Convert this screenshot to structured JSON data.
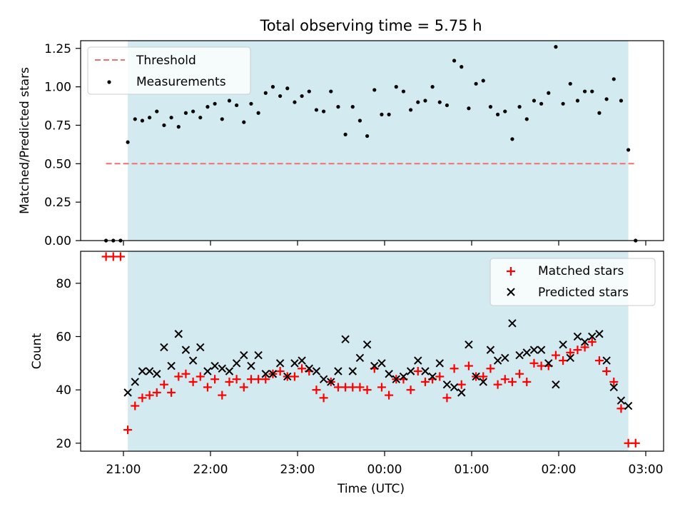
{
  "title": "Total observing time = 5.75 h",
  "colors": {
    "span": "#d2eaf0",
    "threshold": "#f07070",
    "measurements": "#000000",
    "matched": "#ff0000",
    "predicted": "#000000"
  },
  "chart_data": [
    {
      "type": "scatter",
      "ylabel": "Matched/Predicted stars",
      "ylim": [
        0,
        1.3
      ],
      "yticks": [
        0,
        0.25,
        0.5,
        0.75,
        1.0,
        1.25
      ],
      "ytick_labels": [
        "0.00",
        "0.25",
        "0.50",
        "0.75",
        "1.00",
        "1.25"
      ],
      "shaded_span": [
        "21:03",
        "02:48"
      ],
      "threshold": {
        "label": "Threshold",
        "value": 0.5,
        "x_range": [
          "20:48",
          "02:53"
        ]
      },
      "legend": {
        "position": "top-left",
        "entries": [
          "Threshold",
          "Measurements"
        ]
      },
      "series": [
        {
          "name": "Measurements",
          "x": [
            "20:48",
            "20:53",
            "20:58",
            "21:03",
            "21:08",
            "21:13",
            "21:18",
            "21:23",
            "21:28",
            "21:33",
            "21:38",
            "21:43",
            "21:48",
            "21:53",
            "21:58",
            "22:03",
            "22:08",
            "22:13",
            "22:18",
            "22:23",
            "22:28",
            "22:33",
            "22:38",
            "22:43",
            "22:48",
            "22:53",
            "22:58",
            "23:03",
            "23:08",
            "23:13",
            "23:18",
            "23:23",
            "23:28",
            "23:33",
            "23:38",
            "23:43",
            "23:48",
            "23:53",
            "23:58",
            "00:03",
            "00:08",
            "00:13",
            "00:18",
            "00:23",
            "00:28",
            "00:33",
            "00:38",
            "00:43",
            "00:48",
            "00:53",
            "00:58",
            "01:03",
            "01:08",
            "01:13",
            "01:18",
            "01:23",
            "01:28",
            "01:33",
            "01:38",
            "01:43",
            "01:48",
            "01:53",
            "01:58",
            "02:03",
            "02:08",
            "02:13",
            "02:18",
            "02:23",
            "02:28",
            "02:33",
            "02:38",
            "02:43",
            "02:48",
            "02:53"
          ],
          "y": [
            0.0,
            0.0,
            0.0,
            0.64,
            0.79,
            0.78,
            0.8,
            0.84,
            0.75,
            0.8,
            0.74,
            0.83,
            0.84,
            0.8,
            0.87,
            0.89,
            0.79,
            0.91,
            0.88,
            0.77,
            0.89,
            0.83,
            0.96,
            1.0,
            0.94,
            0.99,
            0.9,
            0.94,
            0.97,
            0.85,
            0.84,
            0.97,
            0.87,
            0.69,
            0.87,
            0.78,
            0.68,
            0.98,
            0.82,
            0.82,
            1.0,
            0.97,
            0.85,
            0.9,
            0.91,
            1.0,
            0.9,
            0.88,
            1.17,
            1.13,
            0.86,
            1.02,
            1.04,
            0.87,
            0.82,
            0.84,
            0.66,
            0.87,
            0.79,
            0.91,
            0.89,
            0.96,
            1.26,
            0.89,
            1.02,
            0.91,
            0.97,
            0.97,
            0.83,
            0.92,
            1.05,
            0.91,
            0.59,
            0.0
          ]
        }
      ]
    },
    {
      "type": "scatter",
      "xlabel": "Time (UTC)",
      "ylabel": "Count",
      "ylim": [
        17,
        92
      ],
      "yticks": [
        20,
        40,
        60,
        80
      ],
      "ytick_labels": [
        "20",
        "40",
        "60",
        "80"
      ],
      "xticks": [
        "21:00",
        "22:00",
        "23:00",
        "00:00",
        "01:00",
        "02:00",
        "03:00"
      ],
      "shaded_span": [
        "21:03",
        "02:48"
      ],
      "legend": {
        "position": "top-right",
        "entries": [
          "Matched stars",
          "Predicted stars"
        ]
      },
      "series": [
        {
          "name": "Matched stars",
          "x": [
            "20:48",
            "20:53",
            "20:58",
            "21:03",
            "21:08",
            "21:13",
            "21:18",
            "21:23",
            "21:28",
            "21:33",
            "21:38",
            "21:43",
            "21:48",
            "21:53",
            "21:58",
            "22:03",
            "22:08",
            "22:13",
            "22:18",
            "22:23",
            "22:28",
            "22:33",
            "22:38",
            "22:43",
            "22:48",
            "22:53",
            "22:58",
            "23:03",
            "23:08",
            "23:13",
            "23:18",
            "23:23",
            "23:28",
            "23:33",
            "23:38",
            "23:43",
            "23:48",
            "23:53",
            "23:58",
            "00:03",
            "00:08",
            "00:13",
            "00:18",
            "00:23",
            "00:28",
            "00:33",
            "00:38",
            "00:43",
            "00:48",
            "00:53",
            "00:58",
            "01:03",
            "01:08",
            "01:13",
            "01:18",
            "01:23",
            "01:28",
            "01:33",
            "01:38",
            "01:43",
            "01:48",
            "01:53",
            "01:58",
            "02:03",
            "02:08",
            "02:13",
            "02:18",
            "02:23",
            "02:28",
            "02:33",
            "02:38",
            "02:43",
            "02:48",
            "02:53"
          ],
          "y": [
            90,
            90,
            90,
            25,
            34,
            37,
            38,
            39,
            42,
            39,
            45,
            46,
            43,
            45,
            41,
            44,
            38,
            43,
            44,
            41,
            44,
            44,
            44,
            46,
            47,
            45,
            45,
            48,
            47,
            40,
            37,
            43,
            41,
            41,
            41,
            41,
            40,
            48,
            41,
            38,
            44,
            44,
            40,
            47,
            43,
            44,
            45,
            37,
            48,
            42,
            49,
            45,
            45,
            48,
            42,
            44,
            43,
            46,
            43,
            50,
            49,
            49,
            53,
            51,
            54,
            55,
            56,
            58,
            51,
            47,
            43,
            33,
            20,
            20
          ]
        },
        {
          "name": "Predicted stars",
          "x": [
            "21:03",
            "21:08",
            "21:13",
            "21:18",
            "21:23",
            "21:28",
            "21:33",
            "21:38",
            "21:43",
            "21:48",
            "21:53",
            "21:58",
            "22:03",
            "22:08",
            "22:13",
            "22:18",
            "22:23",
            "22:28",
            "22:33",
            "22:38",
            "22:43",
            "22:48",
            "22:53",
            "22:58",
            "23:03",
            "23:08",
            "23:13",
            "23:18",
            "23:23",
            "23:28",
            "23:33",
            "23:38",
            "23:43",
            "23:48",
            "23:53",
            "23:58",
            "00:03",
            "00:08",
            "00:13",
            "00:18",
            "00:23",
            "00:28",
            "00:33",
            "00:38",
            "00:43",
            "00:48",
            "00:53",
            "00:58",
            "01:03",
            "01:08",
            "01:13",
            "01:18",
            "01:23",
            "01:28",
            "01:33",
            "01:38",
            "01:43",
            "01:48",
            "01:53",
            "01:58",
            "02:03",
            "02:08",
            "02:13",
            "02:18",
            "02:23",
            "02:28",
            "02:33",
            "02:38",
            "02:43",
            "02:48"
          ],
          "y": [
            39,
            43,
            47,
            47,
            46,
            56,
            49,
            61,
            55,
            51,
            56,
            47,
            49,
            48,
            47,
            50,
            53,
            49,
            53,
            46,
            46,
            50,
            45,
            50,
            51,
            48,
            47,
            44,
            43,
            47,
            59,
            47,
            52,
            57,
            49,
            50,
            46,
            44,
            45,
            47,
            51,
            47,
            45,
            50,
            42,
            41,
            39,
            57,
            45,
            43,
            55,
            51,
            52,
            65,
            53,
            54,
            55,
            55,
            50,
            42,
            57,
            52,
            60,
            58,
            60,
            61,
            51,
            41,
            36,
            34
          ]
        }
      ]
    }
  ]
}
